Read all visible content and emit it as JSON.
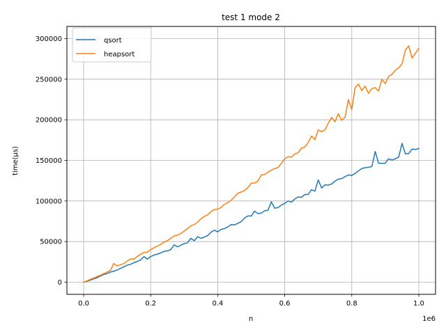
{
  "chart_data": {
    "type": "line",
    "title": "test 1 mode 2",
    "xlabel": "n",
    "ylabel": "time(µs)",
    "x_offset_label": "1e6",
    "xlim": [
      -50000,
      1050000
    ],
    "ylim": [
      -15000,
      315000
    ],
    "xticks": [
      0,
      200000,
      400000,
      600000,
      800000,
      1000000
    ],
    "xtick_labels": [
      "0.0",
      "0.2",
      "0.4",
      "0.6",
      "0.8",
      "1.0"
    ],
    "yticks": [
      0,
      50000,
      100000,
      150000,
      200000,
      250000,
      300000
    ],
    "ytick_labels": [
      "0",
      "50000",
      "100000",
      "150000",
      "200000",
      "250000",
      "300000"
    ],
    "grid": true,
    "legend_position": "top-left",
    "x_step": 10000,
    "x_start": 0,
    "series": [
      {
        "name": "qsort",
        "color": "#1f77b4",
        "values": [
          0,
          1000,
          2500,
          4000,
          5500,
          7500,
          9500,
          10500,
          12500,
          13500,
          15000,
          17000,
          19000,
          21000,
          22000,
          24000,
          25500,
          27500,
          31500,
          28500,
          31500,
          33500,
          34500,
          36000,
          38000,
          38500,
          40000,
          46000,
          43500,
          45500,
          47500,
          48500,
          54000,
          51000,
          56000,
          54000,
          55500,
          57500,
          61500,
          64000,
          62000,
          65000,
          66000,
          68000,
          71000,
          70500,
          72500,
          74500,
          79000,
          81500,
          81500,
          87500,
          84500,
          85000,
          88000,
          88500,
          99000,
          91000,
          92000,
          95000,
          97000,
          100000,
          98500,
          102500,
          105000,
          104500,
          108000,
          108000,
          114000,
          112000,
          126000,
          116000,
          120000,
          119500,
          121000,
          124500,
          127000,
          127500,
          130000,
          132000,
          131500,
          134000,
          137000,
          140000,
          141000,
          141500,
          142500,
          161000,
          146500,
          146500,
          146500,
          152000,
          150500,
          152000,
          154000,
          171000,
          158000,
          158500,
          164000,
          163500,
          164500
        ]
      },
      {
        "name": "heapsort",
        "color": "#ff7f0e",
        "values": [
          0,
          1500,
          3500,
          5000,
          7000,
          8500,
          10500,
          12500,
          14500,
          23000,
          20000,
          21500,
          23000,
          26000,
          28500,
          28500,
          31500,
          34500,
          36500,
          37000,
          40000,
          42500,
          44500,
          46500,
          49500,
          51000,
          54000,
          57000,
          58000,
          60000,
          63000,
          66000,
          69500,
          71000,
          74000,
          78000,
          81000,
          83000,
          87000,
          89500,
          90000,
          92000,
          96000,
          98000,
          101000,
          105000,
          109500,
          111000,
          113000,
          116500,
          122000,
          122000,
          124500,
          132000,
          132500,
          135500,
          138000,
          140000,
          141000,
          146500,
          152000,
          154500,
          154000,
          158000,
          159500,
          165000,
          166500,
          172000,
          180000,
          175500,
          187500,
          185500,
          187500,
          196000,
          203000,
          197500,
          207500,
          199500,
          203000,
          225000,
          212500,
          239500,
          244000,
          236000,
          241500,
          232500,
          238500,
          239500,
          235500,
          250000,
          244500,
          253500,
          256000,
          261000,
          264000,
          269000,
          286000,
          291000,
          276000,
          282000,
          288000
        ]
      }
    ]
  }
}
